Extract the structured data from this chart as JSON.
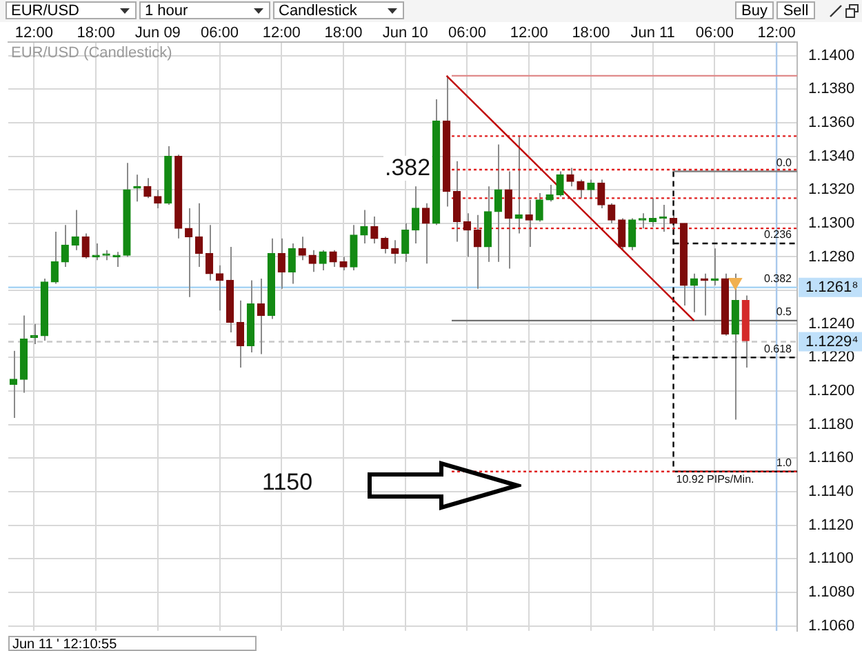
{
  "chart_data": {
    "type": "candlestick",
    "title": "EUR/USD (Candlestick)",
    "x": [
      "--06-08T10:00",
      "--06-08T11:00",
      "--06-08T12:00",
      "--06-08T13:00",
      "--06-08T14:00",
      "--06-08T15:00",
      "--06-08T16:00",
      "--06-08T17:00",
      "--06-08T18:00",
      "--06-08T19:00",
      "--06-08T20:00",
      "--06-08T21:00",
      "--06-08T22:00",
      "--06-08T23:00",
      "--06-09T00:00",
      "--06-09T01:00",
      "--06-09T02:00",
      "--06-09T03:00",
      "--06-09T04:00",
      "--06-09T05:00",
      "--06-09T06:00",
      "--06-09T07:00",
      "--06-09T08:00",
      "--06-09T09:00",
      "--06-09T10:00",
      "--06-09T11:00",
      "--06-09T12:00",
      "--06-09T13:00",
      "--06-09T14:00",
      "--06-09T15:00",
      "--06-09T16:00",
      "--06-09T17:00",
      "--06-09T18:00",
      "--06-09T19:00",
      "--06-09T20:00",
      "--06-09T21:00",
      "--06-09T22:00",
      "--06-09T23:00",
      "--06-10T00:00",
      "--06-10T01:00",
      "--06-10T02:00",
      "--06-10T03:00",
      "--06-10T04:00",
      "--06-10T05:00",
      "--06-10T06:00",
      "--06-10T07:00",
      "--06-10T08:00",
      "--06-10T09:00",
      "--06-10T10:00",
      "--06-10T11:00",
      "--06-10T12:00",
      "--06-10T13:00",
      "--06-10T14:00",
      "--06-10T15:00",
      "--06-10T16:00",
      "--06-10T17:00",
      "--06-10T18:00",
      "--06-10T19:00",
      "--06-10T20:00",
      "--06-10T21:00",
      "--06-10T22:00",
      "--06-10T23:00",
      "--06-11T00:00",
      "--06-11T01:00",
      "--06-11T02:00",
      "--06-11T03:00",
      "--06-11T04:00",
      "--06-11T05:00",
      "--06-11T06:00",
      "--06-11T07:00",
      "--06-11T08:00",
      "--06-11T09:00"
    ],
    "ohlc": [
      [
        1.1204,
        1.1224,
        1.1184,
        1.1207
      ],
      [
        1.1207,
        1.1245,
        1.1199,
        1.1231
      ],
      [
        1.1232,
        1.124,
        1.1228,
        1.1233
      ],
      [
        1.1233,
        1.1267,
        1.123,
        1.1265
      ],
      [
        1.1265,
        1.1295,
        1.1264,
        1.1277
      ],
      [
        1.1277,
        1.1299,
        1.1274,
        1.1287
      ],
      [
        1.1287,
        1.1308,
        1.1284,
        1.1292
      ],
      [
        1.1292,
        1.1294,
        1.1279,
        1.128
      ],
      [
        1.128,
        1.1288,
        1.1278,
        1.1281
      ],
      [
        1.1281,
        1.1284,
        1.1278,
        1.1281
      ],
      [
        1.128,
        1.1283,
        1.1274,
        1.1281
      ],
      [
        1.1281,
        1.1336,
        1.128,
        1.132
      ],
      [
        1.1321,
        1.1329,
        1.1313,
        1.1322
      ],
      [
        1.1322,
        1.1327,
        1.1315,
        1.1316
      ],
      [
        1.1316,
        1.132,
        1.1309,
        1.1312
      ],
      [
        1.1312,
        1.1346,
        1.1311,
        1.134
      ],
      [
        1.134,
        1.1341,
        1.1291,
        1.1297
      ],
      [
        1.1297,
        1.1309,
        1.1256,
        1.1292
      ],
      [
        1.1292,
        1.1312,
        1.1274,
        1.1282
      ],
      [
        1.1282,
        1.1299,
        1.1266,
        1.127
      ],
      [
        1.127,
        1.1275,
        1.1248,
        1.1266
      ],
      [
        1.1266,
        1.1286,
        1.1235,
        1.1241
      ],
      [
        1.1241,
        1.1254,
        1.1214,
        1.1227
      ],
      [
        1.1227,
        1.1266,
        1.1223,
        1.1252
      ],
      [
        1.1252,
        1.1267,
        1.1222,
        1.1245
      ],
      [
        1.1245,
        1.1291,
        1.1243,
        1.1282
      ],
      [
        1.1282,
        1.1291,
        1.1261,
        1.1271
      ],
      [
        1.1271,
        1.1288,
        1.1264,
        1.1285
      ],
      [
        1.1285,
        1.1292,
        1.1278,
        1.1281
      ],
      [
        1.1281,
        1.1284,
        1.1271,
        1.1276
      ],
      [
        1.1276,
        1.1284,
        1.1272,
        1.1283
      ],
      [
        1.1283,
        1.1284,
        1.1274,
        1.1277
      ],
      [
        1.1277,
        1.128,
        1.1272,
        1.1274
      ],
      [
        1.1274,
        1.1299,
        1.1272,
        1.1293
      ],
      [
        1.1293,
        1.1308,
        1.1288,
        1.1298
      ],
      [
        1.1298,
        1.1304,
        1.1288,
        1.1291
      ],
      [
        1.1291,
        1.1292,
        1.1282,
        1.1285
      ],
      [
        1.1285,
        1.129,
        1.1276,
        1.1282
      ],
      [
        1.1282,
        1.13,
        1.1277,
        1.1296
      ],
      [
        1.1296,
        1.1322,
        1.1288,
        1.1309
      ],
      [
        1.1309,
        1.1312,
        1.1276,
        1.13
      ],
      [
        1.13,
        1.1374,
        1.1299,
        1.1361
      ],
      [
        1.1361,
        1.1388,
        1.131,
        1.1319
      ],
      [
        1.1319,
        1.1337,
        1.1289,
        1.1301
      ],
      [
        1.1301,
        1.1306,
        1.128,
        1.1296
      ],
      [
        1.1296,
        1.1305,
        1.1261,
        1.1286
      ],
      [
        1.1286,
        1.1322,
        1.1277,
        1.1307
      ],
      [
        1.1307,
        1.1347,
        1.1277,
        1.132
      ],
      [
        1.132,
        1.1331,
        1.1273,
        1.1303
      ],
      [
        1.1303,
        1.1352,
        1.1294,
        1.1305
      ],
      [
        1.1305,
        1.1314,
        1.1286,
        1.1302
      ],
      [
        1.1302,
        1.1318,
        1.1301,
        1.1314
      ],
      [
        1.1314,
        1.1323,
        1.1313,
        1.1317
      ],
      [
        1.1317,
        1.1331,
        1.1316,
        1.1329
      ],
      [
        1.1329,
        1.1333,
        1.1322,
        1.1325
      ],
      [
        1.1325,
        1.1326,
        1.1315,
        1.132
      ],
      [
        1.132,
        1.1326,
        1.1315,
        1.1324
      ],
      [
        1.1324,
        1.1326,
        1.1309,
        1.1311
      ],
      [
        1.1311,
        1.1312,
        1.13,
        1.1302
      ],
      [
        1.1302,
        1.1303,
        1.1284,
        1.1286
      ],
      [
        1.1286,
        1.1303,
        1.1284,
        1.1302
      ],
      [
        1.1302,
        1.1306,
        1.1297,
        1.1302
      ],
      [
        1.1301,
        1.1315,
        1.1298,
        1.1303
      ],
      [
        1.1303,
        1.1311,
        1.1295,
        1.1303
      ],
      [
        1.1303,
        1.1305,
        1.1293,
        1.13
      ],
      [
        1.13,
        1.13,
        1.1251,
        1.1263
      ],
      [
        1.1263,
        1.127,
        1.1247,
        1.1267
      ],
      [
        1.1267,
        1.127,
        1.1245,
        1.1266
      ],
      [
        1.1266,
        1.1285,
        1.1263,
        1.1267
      ],
      [
        1.1267,
        1.127,
        1.1233,
        1.1234
      ],
      [
        1.1234,
        1.127,
        1.1183,
        1.1254
      ],
      [
        1.1254,
        1.1257,
        1.1214,
        1.123
      ]
    ],
    "colors": [
      "#138a13",
      "#138a13",
      "#138a13",
      "#138a13",
      "#138a13",
      "#138a13",
      "#138a13",
      "#7e0a0a",
      "#138a13",
      "#138a13",
      "#138a13",
      "#138a13",
      "#138a13",
      "#7e0a0a",
      "#7e0a0a",
      "#138a13",
      "#7e0a0a",
      "#7e0a0a",
      "#7e0a0a",
      "#7e0a0a",
      "#7e0a0a",
      "#7e0a0a",
      "#7e0a0a",
      "#138a13",
      "#7e0a0a",
      "#138a13",
      "#7e0a0a",
      "#138a13",
      "#7e0a0a",
      "#7e0a0a",
      "#138a13",
      "#7e0a0a",
      "#7e0a0a",
      "#138a13",
      "#138a13",
      "#7e0a0a",
      "#7e0a0a",
      "#7e0a0a",
      "#138a13",
      "#138a13",
      "#7e0a0a",
      "#138a13",
      "#7e0a0a",
      "#7e0a0a",
      "#7e0a0a",
      "#7e0a0a",
      "#138a13",
      "#138a13",
      "#7e0a0a",
      "#138a13",
      "#7e0a0a",
      "#138a13",
      "#138a13",
      "#138a13",
      "#7e0a0a",
      "#7e0a0a",
      "#138a13",
      "#7e0a0a",
      "#7e0a0a",
      "#7e0a0a",
      "#138a13",
      "#138a13",
      "#138a13",
      "#138a13",
      "#7e0a0a",
      "#7e0a0a",
      "#138a13",
      "#7e0a0a",
      "#138a13",
      "#7e0a0a",
      "#138a13",
      "#d42a2a"
    ],
    "series": [
      {
        "type": "line",
        "x": [
          "--06-10T04:00",
          "--06-11T04:00"
        ],
        "values": [
          1.1388,
          1.1242
        ],
        "color": "#c00000",
        "line_style": "solid"
      },
      {
        "type": "line",
        "x": [
          "--06-10T04:30",
          "--06-11T14:00"
        ],
        "values": [
          1.1388,
          1.1388
        ],
        "color": "#e08a8a",
        "line_style": "solid"
      },
      {
        "type": "line",
        "x": [
          "--06-10T04:30",
          "--06-11T14:00"
        ],
        "values": [
          1.1352,
          1.1352
        ],
        "color": "#e02020",
        "line_style": "dotted"
      },
      {
        "type": "line",
        "x": [
          "--06-10T04:30",
          "--06-11T14:00"
        ],
        "values": [
          1.1332,
          1.1332
        ],
        "color": "#e02020",
        "line_style": "dotted"
      },
      {
        "type": "line",
        "x": [
          "--06-10T04:30",
          "--06-11T14:00"
        ],
        "values": [
          1.1315,
          1.1315
        ],
        "color": "#e02020",
        "line_style": "dotted"
      },
      {
        "type": "line",
        "x": [
          "--06-10T04:30",
          "--06-11T14:00"
        ],
        "values": [
          1.1297,
          1.1297
        ],
        "color": "#e02020",
        "line_style": "dotted"
      },
      {
        "type": "line",
        "x": [
          "--06-10T04:30",
          "--06-11T14:00"
        ],
        "values": [
          1.1152,
          1.1152
        ],
        "color": "#e02020",
        "line_style": "dotted"
      },
      {
        "type": "line",
        "x": [
          "--06-11T02:00",
          "--06-11T14:00"
        ],
        "values": [
          1.1331,
          1.1331
        ],
        "color": "#808080",
        "line_style": "solid"
      },
      {
        "type": "line",
        "x": [
          "--06-11T02:00",
          "--06-11T14:00"
        ],
        "values": [
          1.1288,
          1.1288
        ],
        "color": "#000000",
        "line_style": "dashed"
      },
      {
        "type": "line",
        "x": [
          "--06-10T04:30",
          "--06-11T14:00"
        ],
        "values": [
          1.1242,
          1.1242
        ],
        "color": "#707070",
        "line_style": "solid"
      },
      {
        "type": "line",
        "x": [
          "--06-11T02:00",
          "--06-11T14:00"
        ],
        "values": [
          1.122,
          1.122
        ],
        "color": "#000000",
        "line_style": "dashed"
      },
      {
        "type": "line",
        "x": [
          "--06-11T02:00",
          "--06-11T14:00"
        ],
        "values": [
          1.1152,
          1.1152
        ],
        "color": "#000000",
        "line_style": "solid"
      },
      {
        "type": "line",
        "x": [
          "--06-11T02:00",
          "--06-11T02:00"
        ],
        "values": [
          1.1331,
          1.1152
        ],
        "color": "#000000",
        "line_style": "dashed"
      },
      {
        "type": "scatter",
        "x": [
          "--06-11T08:00"
        ],
        "values": [
          1.1265
        ],
        "color": "#f0b050",
        "marker": "triangle"
      }
    ],
    "xlim": [
      "--06-08T09:30",
      "--06-11T14:00"
    ],
    "xticks": [
      {
        "value": "--06-08T12:00",
        "label": "12:00"
      },
      {
        "value": "--06-08T18:00",
        "label": "18:00"
      },
      {
        "value": "--06-09T00:00",
        "label": "Jun 09"
      },
      {
        "value": "--06-09T06:00",
        "label": "06:00"
      },
      {
        "value": "--06-09T12:00",
        "label": "12:00"
      },
      {
        "value": "--06-09T18:00",
        "label": "18:00"
      },
      {
        "value": "--06-10T00:00",
        "label": "Jun 10"
      },
      {
        "value": "--06-10T06:00",
        "label": "06:00"
      },
      {
        "value": "--06-10T12:00",
        "label": "12:00"
      },
      {
        "value": "--06-10T18:00",
        "label": "18:00"
      },
      {
        "value": "--06-11T00:00",
        "label": "Jun 11"
      },
      {
        "value": "--06-11T06:00",
        "label": "06:00"
      },
      {
        "value": "--06-11T12:00",
        "label": "12:00"
      }
    ],
    "ylim": [
      1.1057,
      1.1408
    ],
    "yticks": [
      {
        "value": 1.106,
        "label": "1.1060"
      },
      {
        "value": 1.108,
        "label": "1.1080"
      },
      {
        "value": 1.11,
        "label": "1.1100"
      },
      {
        "value": 1.112,
        "label": "1.1120"
      },
      {
        "value": 1.114,
        "label": "1.1140"
      },
      {
        "value": 1.116,
        "label": "1.1160"
      },
      {
        "value": 1.118,
        "label": "1.1180"
      },
      {
        "value": 1.12,
        "label": "1.1200"
      },
      {
        "value": 1.122,
        "label": "1.1220"
      },
      {
        "value": 1.124,
        "label": "1.1240"
      },
      {
        "value": 1.126,
        "label": null
      },
      {
        "value": 1.128,
        "label": "1.1280"
      },
      {
        "value": 1.13,
        "label": "1.1300"
      },
      {
        "value": 1.132,
        "label": "1.1320"
      },
      {
        "value": 1.134,
        "label": "1.1340"
      },
      {
        "value": 1.136,
        "label": "1.1360"
      },
      {
        "value": 1.138,
        "label": "1.1380"
      },
      {
        "value": 1.14,
        "label": "1.1400"
      }
    ],
    "grid": true,
    "ref_lines": [
      {
        "axis": "y",
        "value": 1.12618,
        "label": "1.1261⁸",
        "color": "#a8d4f4"
      },
      {
        "axis": "y",
        "value": 1.12294,
        "label": "1.1229⁴",
        "color": "#c8c8c8",
        "line_style": "dashed"
      },
      {
        "axis": "x",
        "value": "--06-11T12:00",
        "color": "#a8c8ec"
      }
    ],
    "annotations": [
      "EUR/USD",
      "1 hour",
      "Candlestick",
      "Buy",
      "Sell",
      "Jun 11 ' 12:10:55",
      ".382",
      "1150",
      {
        "text": "0.0",
        "x": "--06-11T14:00",
        "y": 1.1331
      },
      {
        "text": "0.236",
        "x": "--06-11T14:00",
        "y": 1.1288
      },
      {
        "text": "0.382",
        "x": "--06-11T14:00",
        "y": 1.1262
      },
      {
        "text": "0.5",
        "x": "--06-11T14:00",
        "y": 1.1242
      },
      {
        "text": "0.618",
        "x": "--06-11T14:00",
        "y": 1.122
      },
      {
        "text": "1.0",
        "x": "--06-11T14:00",
        "y": 1.1152
      },
      {
        "text": "10.92 PIPs/Min.",
        "x": "--06-11T02:00",
        "y": 1.1152
      }
    ]
  }
}
